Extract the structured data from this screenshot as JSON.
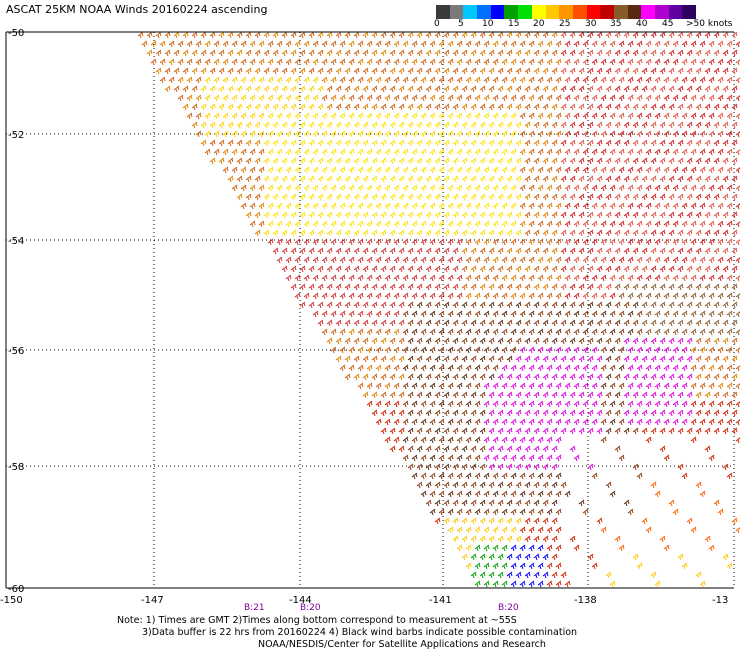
{
  "title": "ASCAT 25KM NOAA Winds 20160224 ascending",
  "legend": {
    "colors": [
      "#3a3a3a",
      "#7a7a7a",
      "#00c8ff",
      "#0070ff",
      "#0000ff",
      "#00a000",
      "#00e000",
      "#ffff00",
      "#ffc800",
      "#ff9600",
      "#ff5000",
      "#ff0000",
      "#c00000",
      "#8b5a2b",
      "#5a2a10",
      "#ff00ff",
      "#b000d0",
      "#6000a0",
      "#300060"
    ],
    "labels": [
      "0",
      "5",
      "10",
      "15",
      "20",
      "25",
      "30",
      "35",
      "40",
      "45",
      ">50 knots"
    ]
  },
  "axes": {
    "lat_labels": [
      "-50",
      "-52",
      "-54",
      "-56",
      "-58",
      "-60"
    ],
    "lon_labels": [
      "-150",
      "-147",
      "-144",
      "-141",
      "-138",
      "-13"
    ]
  },
  "time_marks": [
    "B:21",
    "B:20",
    "B:20"
  ],
  "notes": [
    "Note: 1) Times are GMT 2)Times along bottom correspond to measurement at ~55S",
    "3)Data buffer is 22 hrs from 20160224 4) Black wind barbs indicate possible contamination",
    "NOAA/NESDIS/Center for Satellite Applications and Research"
  ],
  "wind_regions": [
    {
      "speed": "25-35",
      "color": "#ff9600"
    },
    {
      "speed": "20-25",
      "color": "#ffff00"
    },
    {
      "speed": "35-40",
      "color": "#ff0000"
    },
    {
      "speed": "40-45",
      "color": "#8b5a2b"
    },
    {
      "speed": "45-50",
      "color": "#ff00ff"
    },
    {
      "speed": "10-20",
      "color": "#00a000"
    },
    {
      "speed": "5-15",
      "color": "#0000ff"
    }
  ]
}
